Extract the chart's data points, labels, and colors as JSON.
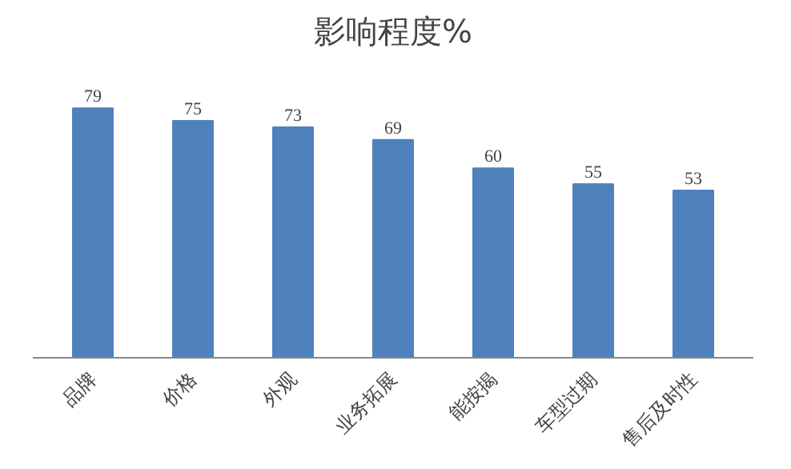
{
  "chart_data": {
    "type": "bar",
    "title": "影响程度%",
    "categories": [
      "品牌",
      "价格",
      "外观",
      "业务拓展",
      "能按揭",
      "车型过期",
      "售后及时性"
    ],
    "values": [
      79,
      75,
      73,
      69,
      60,
      55,
      53
    ],
    "color": "#4f81bd",
    "data_labels": true
  }
}
